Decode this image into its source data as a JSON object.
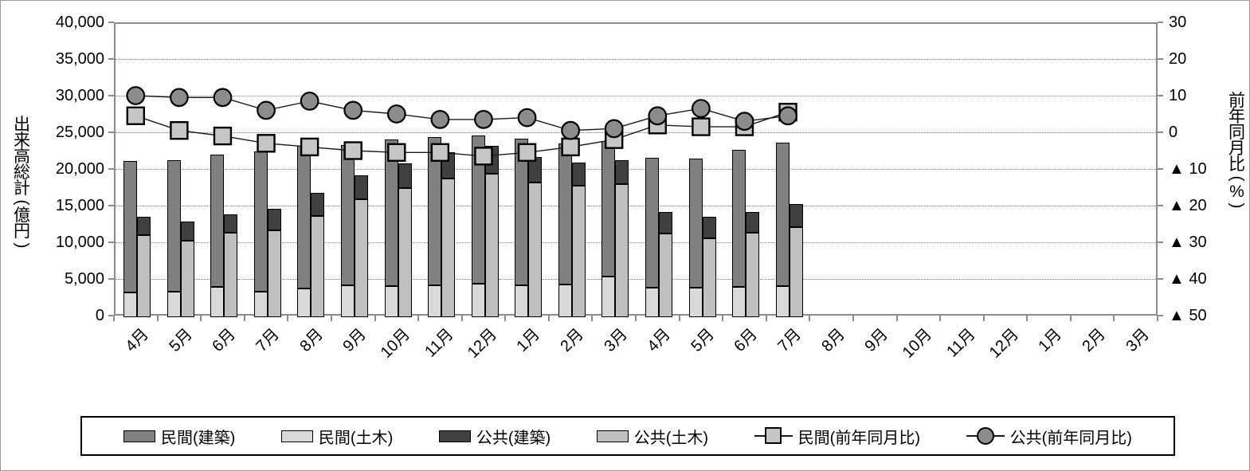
{
  "y_axis_left": {
    "title": "出来高総計(億円)",
    "tick_labels": [
      "0",
      "5,000",
      "10,000",
      "15,000",
      "20,000",
      "25,000",
      "30,000",
      "35,000",
      "40,000"
    ],
    "tick_values": [
      0,
      5000,
      10000,
      15000,
      20000,
      25000,
      30000,
      35000,
      40000
    ],
    "min": 0,
    "max": 40000
  },
  "y_axis_right": {
    "title": "前年同月比(%)",
    "tick_labels": [
      "30",
      "20",
      "10",
      "0",
      "▲ 10",
      "▲ 20",
      "▲ 30",
      "▲ 40",
      "▲ 50"
    ],
    "tick_values": [
      30,
      20,
      10,
      0,
      -10,
      -20,
      -30,
      -40,
      -50
    ],
    "min": -50,
    "max": 30
  },
  "x_axis": {
    "labels": [
      "4月",
      "5月",
      "6月",
      "7月",
      "8月",
      "9月",
      "10月",
      "11月",
      "12月",
      "1月",
      "2月",
      "3月",
      "4月",
      "5月",
      "6月",
      "7月",
      "8月",
      "9月",
      "10月",
      "11月",
      "12月",
      "1月",
      "2月",
      "3月"
    ]
  },
  "chart_data": {
    "type": "combo-stacked-bar-and-line",
    "categories": [
      "4月",
      "5月",
      "6月",
      "7月",
      "8月",
      "9月",
      "10月",
      "11月",
      "12月",
      "1月",
      "2月",
      "3月",
      "4月",
      "5月",
      "6月",
      "7月",
      "8月",
      "9月",
      "10月",
      "11月",
      "12月",
      "1月",
      "2月",
      "3月"
    ],
    "ylim_left": [
      0,
      40000
    ],
    "ylim_right": [
      -50,
      30
    ],
    "grid": "horizontal dotted every 5000 (left axis) / 10 (right axis)",
    "legend_position": "bottom",
    "series": [
      {
        "name": "民間(建築)",
        "type": "bar",
        "stack": "minkan",
        "position_in_stack": "top",
        "color": "#808080",
        "values": [
          17900,
          17900,
          18100,
          19100,
          19500,
          19200,
          20000,
          20200,
          20200,
          20000,
          19200,
          18500,
          17700,
          17600,
          18700,
          19600,
          null,
          null,
          null,
          null,
          null,
          null,
          null,
          null
        ]
      },
      {
        "name": "民間(土木)",
        "type": "bar",
        "stack": "minkan",
        "position_in_stack": "bottom",
        "color": "#d9d9d9",
        "values": [
          3400,
          3500,
          4100,
          3500,
          3900,
          4300,
          4200,
          4400,
          4600,
          4300,
          4500,
          5500,
          4000,
          4000,
          4100,
          4200,
          null,
          null,
          null,
          null,
          null,
          null,
          null,
          null
        ]
      },
      {
        "name": "公共(建築)",
        "type": "bar",
        "stack": "kokyo",
        "position_in_stack": "top",
        "color": "#404040",
        "values": [
          2500,
          2600,
          2500,
          2900,
          3200,
          3200,
          3400,
          3600,
          3800,
          3500,
          3200,
          3200,
          2900,
          2900,
          2900,
          3100,
          null,
          null,
          null,
          null,
          null,
          null,
          null,
          null
        ]
      },
      {
        "name": "公共(土木)",
        "type": "bar",
        "stack": "kokyo",
        "position_in_stack": "bottom",
        "color": "#bfbfbf",
        "values": [
          11200,
          10400,
          11500,
          11900,
          13800,
          16100,
          17600,
          18900,
          19600,
          18400,
          17900,
          18200,
          11400,
          10800,
          11500,
          12300,
          null,
          null,
          null,
          null,
          null,
          null,
          null,
          null
        ]
      },
      {
        "name": "民間(前年同月比)",
        "type": "line",
        "axis": "right",
        "marker": "square",
        "marker_color": "#c6c6c6",
        "line_color": "#1a1a1a",
        "values": [
          4.5,
          0.5,
          -1,
          -3,
          -4,
          -5,
          -5.5,
          -5.5,
          -6.5,
          -5.5,
          -4,
          -2,
          2,
          1.5,
          1.5,
          5.5,
          null,
          null,
          null,
          null,
          null,
          null,
          null,
          null
        ]
      },
      {
        "name": "公共(前年同月比)",
        "type": "line",
        "axis": "right",
        "marker": "circle",
        "marker_color": "#8c8c8c",
        "line_color": "#1a1a1a",
        "values": [
          10,
          9.5,
          9.5,
          6,
          8.5,
          6,
          5,
          3.5,
          3.5,
          4,
          0.5,
          1,
          4.5,
          6.5,
          3,
          4.5,
          null,
          null,
          null,
          null,
          null,
          null,
          null,
          null
        ]
      }
    ]
  },
  "legend": {
    "items": [
      {
        "label": "民間(建築)",
        "swatch": "bar",
        "color": "#808080"
      },
      {
        "label": "民間(土木)",
        "swatch": "bar",
        "color": "#d9d9d9"
      },
      {
        "label": "公共(建築)",
        "swatch": "bar",
        "color": "#404040"
      },
      {
        "label": "公共(土木)",
        "swatch": "bar",
        "color": "#bfbfbf"
      },
      {
        "label": "民間(前年同月比)",
        "swatch": "line-square",
        "color": "#c6c6c6"
      },
      {
        "label": "公共(前年同月比)",
        "swatch": "line-circle",
        "color": "#8c8c8c"
      }
    ]
  }
}
